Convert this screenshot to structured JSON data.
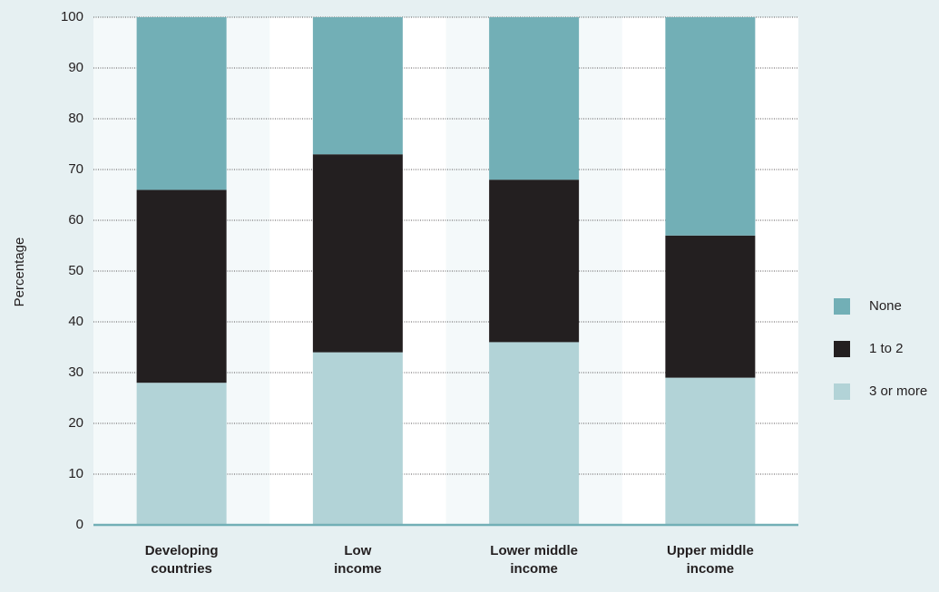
{
  "chart_data": {
    "type": "stacked_bar",
    "y_label": "Percentage",
    "categories": [
      "Developing countries",
      "Low income",
      "Lower middle income",
      "Upper middle income"
    ],
    "series": [
      {
        "name": "3 or more",
        "color": "#b2d3d7",
        "values": [
          28,
          34,
          36,
          29
        ]
      },
      {
        "name": "1 to 2",
        "color": "#231f20",
        "values": [
          38,
          39,
          32,
          28
        ]
      },
      {
        "name": "None",
        "color": "#72afb6",
        "values": [
          34,
          27,
          32,
          43
        ]
      }
    ],
    "ylim": [
      0,
      100
    ],
    "yticks": [
      0,
      10,
      20,
      30,
      40,
      50,
      60,
      70,
      80,
      90,
      100
    ],
    "grid": true,
    "legend": "right"
  }
}
